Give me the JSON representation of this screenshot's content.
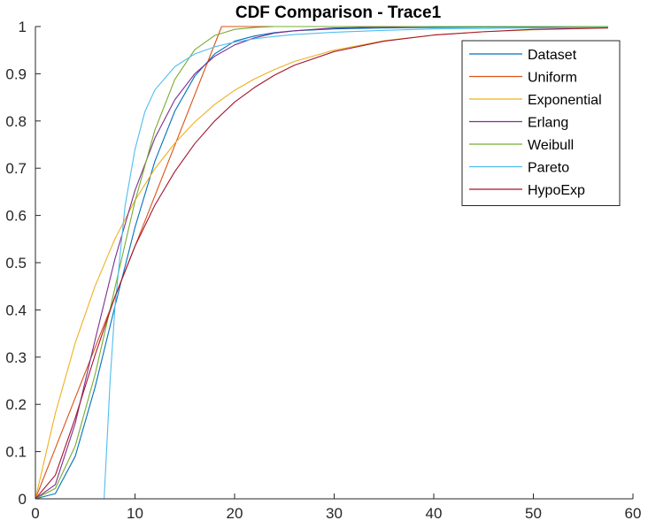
{
  "chart_data": {
    "type": "line",
    "title": "CDF Comparison - Trace1",
    "xlabel": "",
    "ylabel": "",
    "xlim": [
      0,
      60
    ],
    "ylim": [
      0,
      1
    ],
    "xticks": [
      0,
      10,
      20,
      30,
      40,
      50,
      60
    ],
    "yticks": [
      0,
      0.1,
      0.2,
      0.3,
      0.4,
      0.5,
      0.6,
      0.7,
      0.8,
      0.9,
      1
    ],
    "xtick_labels": [
      "0",
      "10",
      "20",
      "30",
      "40",
      "50",
      "60"
    ],
    "ytick_labels": [
      "0",
      "0.1",
      "0.2",
      "0.3",
      "0.4",
      "0.5",
      "0.6",
      "0.7",
      "0.8",
      "0.9",
      "1"
    ],
    "grid": false,
    "legend_position": "top-right",
    "series": [
      {
        "name": "Dataset",
        "color": "#0072BD",
        "x": [
          0,
          2,
          4,
          6,
          8,
          10,
          12,
          14,
          16,
          18,
          20,
          22,
          24,
          26,
          30,
          35,
          40,
          45,
          50,
          57.5
        ],
        "y": [
          0,
          0.011,
          0.09,
          0.237,
          0.409,
          0.575,
          0.715,
          0.821,
          0.895,
          0.942,
          0.969,
          0.98,
          0.987,
          0.991,
          0.995,
          0.997,
          0.998,
          0.999,
          0.999,
          1.0
        ]
      },
      {
        "name": "Uniform",
        "color": "#D95319",
        "x": [
          0,
          18.7,
          57.5
        ],
        "y": [
          0,
          1.0,
          1.0
        ]
      },
      {
        "name": "Exponential",
        "color": "#EDB120",
        "x": [
          0,
          2,
          4,
          6,
          8,
          10,
          12,
          14,
          16,
          18,
          20,
          22,
          24,
          26,
          30,
          35,
          40,
          45,
          50,
          57.5
        ],
        "y": [
          0,
          0.181,
          0.33,
          0.451,
          0.551,
          0.632,
          0.699,
          0.753,
          0.798,
          0.835,
          0.865,
          0.889,
          0.909,
          0.926,
          0.95,
          0.97,
          0.982,
          0.989,
          0.993,
          0.997
        ]
      },
      {
        "name": "Erlang",
        "color": "#7E2F8E",
        "x": [
          0,
          2,
          4,
          6,
          8,
          10,
          12,
          14,
          16,
          18,
          20,
          22,
          24,
          26,
          30,
          35,
          40,
          45,
          50,
          57.5
        ],
        "y": [
          0,
          0.03,
          0.16,
          0.337,
          0.509,
          0.653,
          0.764,
          0.845,
          0.9,
          0.937,
          0.961,
          0.976,
          0.986,
          0.991,
          0.997,
          0.999,
          1.0,
          1.0,
          1.0,
          1.0
        ]
      },
      {
        "name": "Weibull",
        "color": "#77AC30",
        "x": [
          0,
          2,
          4,
          6,
          8,
          10,
          12,
          14,
          16,
          18,
          20,
          22,
          24,
          26,
          30,
          35,
          40,
          45,
          50,
          57.5
        ],
        "y": [
          0,
          0.022,
          0.112,
          0.264,
          0.448,
          0.63,
          0.781,
          0.888,
          0.951,
          0.981,
          0.994,
          0.998,
          1.0,
          1.0,
          1.0,
          1.0,
          1.0,
          1.0,
          1.0,
          1.0
        ]
      },
      {
        "name": "Pareto",
        "color": "#4DBEEE",
        "x": [
          0,
          6.9,
          7.5,
          8,
          9,
          10,
          11,
          12,
          14,
          16,
          18,
          20,
          22,
          24,
          26,
          30,
          35,
          40,
          45,
          50,
          57.5
        ],
        "y": [
          0,
          0,
          0.25,
          0.41,
          0.62,
          0.74,
          0.82,
          0.866,
          0.915,
          0.942,
          0.957,
          0.967,
          0.974,
          0.979,
          0.983,
          0.988,
          0.992,
          0.995,
          0.996,
          0.997,
          0.998
        ]
      },
      {
        "name": "HypoExp",
        "color": "#A2142F",
        "x": [
          0,
          2,
          4,
          6,
          8,
          10,
          12,
          14,
          16,
          18,
          20,
          22,
          24,
          26,
          30,
          35,
          40,
          45,
          50,
          57.5
        ],
        "y": [
          0,
          0.05,
          0.171,
          0.305,
          0.429,
          0.535,
          0.622,
          0.693,
          0.752,
          0.8,
          0.84,
          0.871,
          0.897,
          0.918,
          0.947,
          0.969,
          0.982,
          0.989,
          0.994,
          0.997
        ]
      }
    ]
  }
}
